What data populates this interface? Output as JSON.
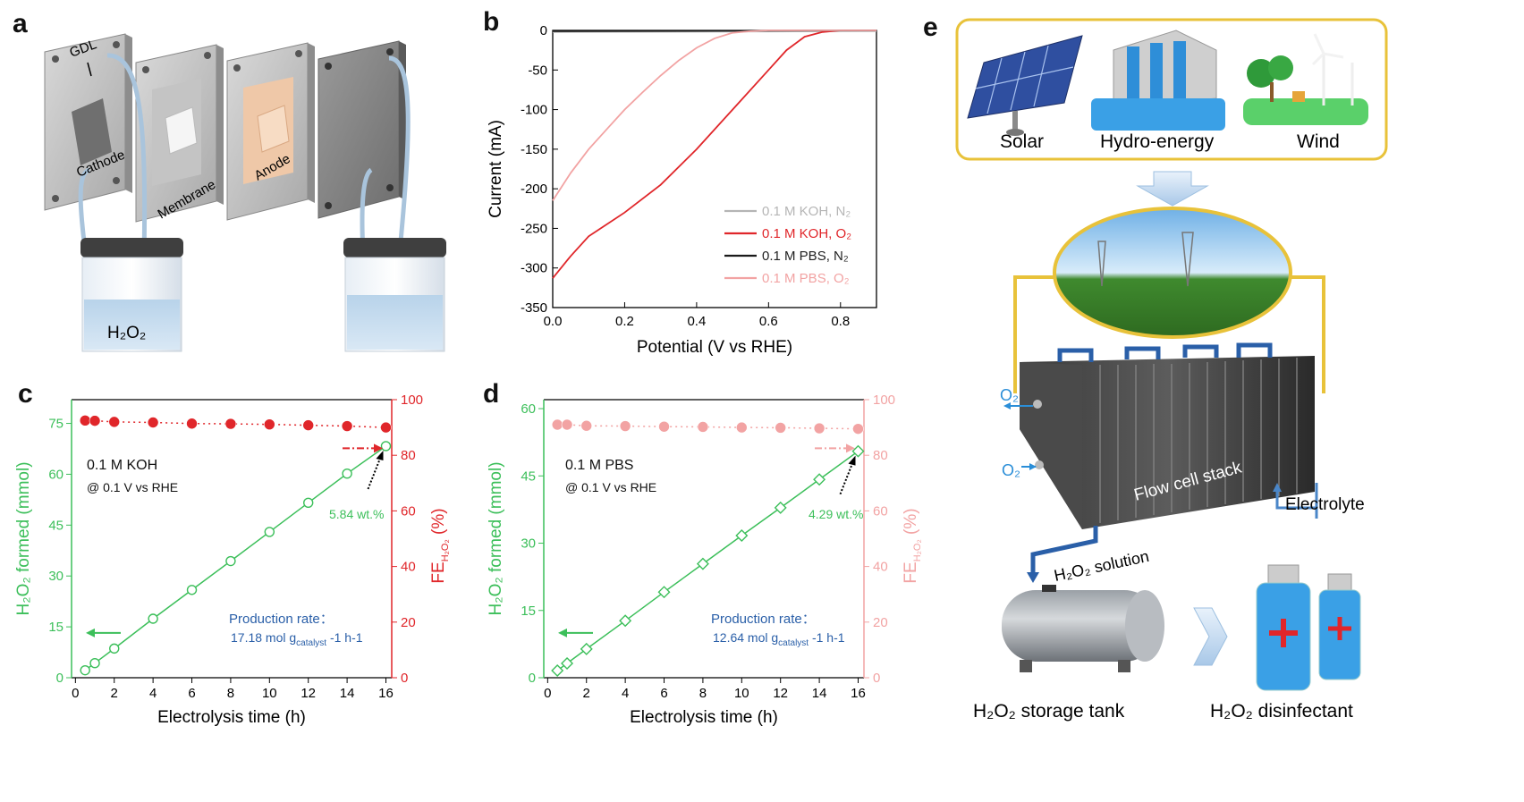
{
  "panels": {
    "a": {
      "label": "a",
      "parts": {
        "gdl": "GDL",
        "cathode": "Cathode",
        "membrane": "Membrane",
        "anode": "Anode"
      },
      "beaker_label": "H₂O₂"
    },
    "b": {
      "label": "b"
    },
    "c": {
      "label": "c",
      "electrolyte": "0.1 M KOH",
      "condition": "@ 0.1 V vs RHE",
      "rate_title": "Production rate：",
      "rate_value": "17.18 mol g",
      "rate_sub": "catalyst",
      "rate_unit": "-1 h-1",
      "arrow_note": "5.84 wt.%"
    },
    "d": {
      "label": "d",
      "electrolyte": "0.1 M PBS",
      "condition": "@ 0.1 V vs RHE",
      "rate_title": "Production rate：",
      "rate_value": "12.64 mol g",
      "rate_sub": "catalyst",
      "rate_unit": "-1 h-1",
      "arrow_note": "4.29 wt.%"
    },
    "e": {
      "label": "e",
      "sources": [
        "Solar",
        "Hydro-energy",
        "Wind"
      ],
      "o2_in": "O₂",
      "o2_out": "O₂",
      "stack_label": "Flow cell stack",
      "electrolyte": "Electrolyte",
      "solution": "H₂O₂ solution",
      "tank": "H₂O₂ storage tank",
      "disinfectant": "H₂O₂ disinfectant"
    }
  },
  "colors": {
    "green": "#3cbf5a",
    "red": "#e0262a",
    "pink": "#f2a3a3",
    "gray": "#b5b5b5",
    "black": "#1a1a1a",
    "blue": "#2a5fa8"
  },
  "chart_data": [
    {
      "id": "b",
      "type": "line",
      "xlabel": "Potential (V vs RHE)",
      "ylabel": "Current  (mA)",
      "xlim": [
        0.0,
        0.9
      ],
      "ylim": [
        -350,
        0
      ],
      "xticks": [
        0.0,
        0.2,
        0.4,
        0.6,
        0.8
      ],
      "yticks": [
        0,
        -50,
        -100,
        -150,
        -200,
        -250,
        -300,
        -350
      ],
      "legend_position": "bottom-right",
      "series": [
        {
          "name": "0.1 M KOH, N₂",
          "color": "#b5b5b5",
          "x": [
            0.0,
            0.9
          ],
          "y": [
            -2,
            -1
          ]
        },
        {
          "name": "0.1 M KOH, O₂",
          "color": "#e0262a",
          "x": [
            0.0,
            0.05,
            0.1,
            0.2,
            0.3,
            0.4,
            0.5,
            0.6,
            0.65,
            0.7,
            0.75,
            0.8,
            0.9
          ],
          "y": [
            -313,
            -285,
            -260,
            -230,
            -195,
            -150,
            -100,
            -50,
            -25,
            -8,
            -2,
            0,
            0
          ]
        },
        {
          "name": "0.1 M PBS, N₂",
          "color": "#1a1a1a",
          "x": [
            0.0,
            0.9
          ],
          "y": [
            -1,
            0
          ]
        },
        {
          "name": "0.1 M PBS, O₂",
          "color": "#f2a3a3",
          "x": [
            0.0,
            0.05,
            0.1,
            0.15,
            0.2,
            0.25,
            0.3,
            0.35,
            0.4,
            0.45,
            0.5,
            0.55,
            0.6,
            0.9
          ],
          "y": [
            -215,
            -180,
            -150,
            -125,
            -100,
            -78,
            -57,
            -38,
            -22,
            -10,
            -3,
            -1,
            0,
            0
          ]
        }
      ]
    },
    {
      "id": "c",
      "type": "scatter",
      "xlabel": "Electrolysis time (h)",
      "ylabel": "H₂O₂ formed (mmol)",
      "y2label": "FE",
      "y2label_sub": "H₂O₂",
      "y2label_unit": " (%)",
      "xlim": [
        -0.2,
        16.3
      ],
      "ylim": [
        0,
        82
      ],
      "y2lim": [
        0,
        100
      ],
      "xticks": [
        0,
        2,
        4,
        6,
        8,
        10,
        12,
        14,
        16
      ],
      "yticks": [
        0,
        15,
        30,
        45,
        60,
        75
      ],
      "y2ticks": [
        0,
        20,
        40,
        60,
        80,
        100
      ],
      "series": [
        {
          "name": "H₂O₂ formed",
          "axis": "left",
          "marker": "circle",
          "color": "#3cbf5a",
          "x": [
            0.5,
            1,
            2,
            4,
            6,
            8,
            10,
            12,
            14,
            16
          ],
          "y": [
            2.2,
            4.3,
            8.6,
            17.4,
            25.9,
            34.4,
            43.0,
            51.6,
            60.2,
            68.3
          ]
        },
        {
          "name": "FE",
          "axis": "right",
          "marker": "sphere",
          "color": "#e0262a",
          "x": [
            0.5,
            1,
            2,
            4,
            6,
            8,
            10,
            12,
            14,
            16
          ],
          "y": [
            92.5,
            92.4,
            92.0,
            91.8,
            91.4,
            91.3,
            91.1,
            90.8,
            90.5,
            90.0
          ]
        }
      ]
    },
    {
      "id": "d",
      "type": "scatter",
      "xlabel": "Electrolysis time (h)",
      "ylabel": "H₂O₂ formed (mmol)",
      "y2label": "FE",
      "y2label_sub": "H₂O₂",
      "y2label_unit": " (%)",
      "xlim": [
        -0.2,
        16.3
      ],
      "ylim": [
        0,
        62
      ],
      "y2lim": [
        0,
        100
      ],
      "xticks": [
        0,
        2,
        4,
        6,
        8,
        10,
        12,
        14,
        16
      ],
      "yticks": [
        0,
        15,
        30,
        45,
        60
      ],
      "y2ticks": [
        0,
        20,
        40,
        60,
        80,
        100
      ],
      "series": [
        {
          "name": "H₂O₂ formed",
          "axis": "left",
          "marker": "diamond",
          "color": "#3cbf5a",
          "x": [
            0.5,
            1,
            2,
            4,
            6,
            8,
            10,
            12,
            14,
            16
          ],
          "y": [
            1.6,
            3.2,
            6.4,
            12.7,
            19.1,
            25.4,
            31.7,
            37.9,
            44.2,
            50.5
          ]
        },
        {
          "name": "FE",
          "axis": "right",
          "marker": "sphere",
          "color": "#f2a3a3",
          "x": [
            0.5,
            1,
            2,
            4,
            6,
            8,
            10,
            12,
            14,
            16
          ],
          "y": [
            91.0,
            91.0,
            90.6,
            90.5,
            90.3,
            90.2,
            90.0,
            89.9,
            89.7,
            89.5
          ]
        }
      ]
    }
  ]
}
